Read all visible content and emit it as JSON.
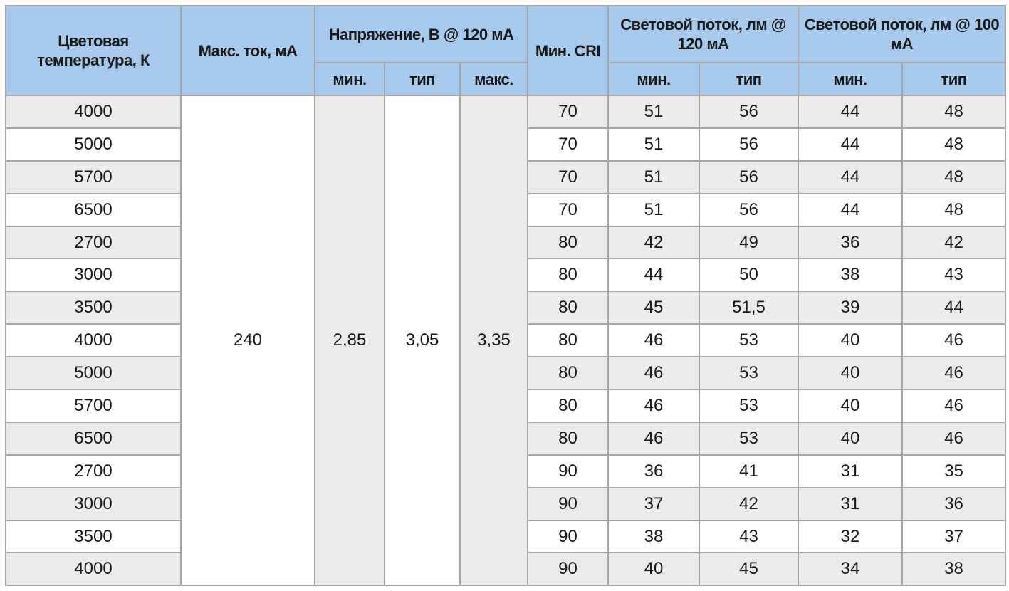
{
  "header": {
    "color_temp": "Цветовая температура, К",
    "max_current": "Макс. ток, мА",
    "voltage": "Напряжение, В @ 120 мА",
    "min_cri": "Мин. CRI",
    "flux_120": "Световой поток, лм @ 120 мА",
    "flux_100": "Световой поток, лм @ 100 мА",
    "sub": {
      "min": "мин.",
      "typ": "тип",
      "max": "макс."
    }
  },
  "merged": {
    "max_current": "240",
    "v_min": "2,85",
    "v_typ": "3,05",
    "v_max": "3,35"
  },
  "rows": [
    [
      "4000",
      "70",
      "51",
      "56",
      "44",
      "48"
    ],
    [
      "5000",
      "70",
      "51",
      "56",
      "44",
      "48"
    ],
    [
      "5700",
      "70",
      "51",
      "56",
      "44",
      "48"
    ],
    [
      "6500",
      "70",
      "51",
      "56",
      "44",
      "48"
    ],
    [
      "2700",
      "80",
      "42",
      "49",
      "36",
      "42"
    ],
    [
      "3000",
      "80",
      "44",
      "50",
      "38",
      "43"
    ],
    [
      "3500",
      "80",
      "45",
      "51,5",
      "39",
      "44"
    ],
    [
      "4000",
      "80",
      "46",
      "53",
      "40",
      "46"
    ],
    [
      "5000",
      "80",
      "46",
      "53",
      "40",
      "46"
    ],
    [
      "5700",
      "80",
      "46",
      "53",
      "40",
      "46"
    ],
    [
      "6500",
      "80",
      "46",
      "53",
      "40",
      "46"
    ],
    [
      "2700",
      "90",
      "36",
      "41",
      "31",
      "35"
    ],
    [
      "3000",
      "90",
      "37",
      "42",
      "31",
      "36"
    ],
    [
      "3500",
      "90",
      "38",
      "43",
      "32",
      "37"
    ],
    [
      "4000",
      "90",
      "40",
      "45",
      "34",
      "38"
    ]
  ],
  "colors": {
    "header_bg": "#a6c9ec",
    "row_gray": "#ebebeb",
    "border": "#a6a6a6"
  }
}
